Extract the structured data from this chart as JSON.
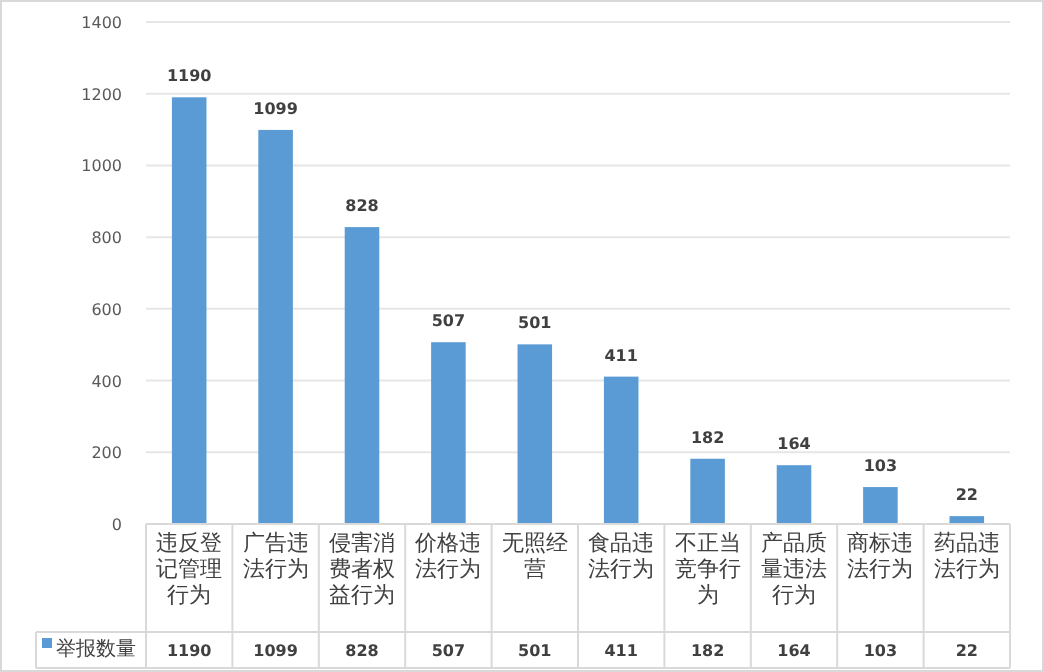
{
  "chart_data": {
    "type": "bar",
    "categories": [
      "违反登记管理行为",
      "广告违法行为",
      "侵害消费者权益行为",
      "价格违法行为",
      "无照经营",
      "食品违法行为",
      "不正当竞争行为",
      "产品质量违法行为",
      "商标违法行为",
      "药品违法行为"
    ],
    "series": [
      {
        "name": "举报数量",
        "color": "#5b9bd5",
        "values": [
          1190,
          1099,
          828,
          507,
          501,
          411,
          182,
          164,
          103,
          22
        ],
        "value_labels": [
          "1190",
          "1099",
          "828",
          "507",
          "501",
          "411",
          "182",
          "164",
          "103",
          "22"
        ]
      }
    ],
    "ylim": [
      0,
      1400
    ],
    "yticks": [
      0,
      200,
      400,
      600,
      800,
      1000,
      1200,
      1400
    ],
    "grid": "y",
    "data_labels": true,
    "legend": "bottom"
  }
}
